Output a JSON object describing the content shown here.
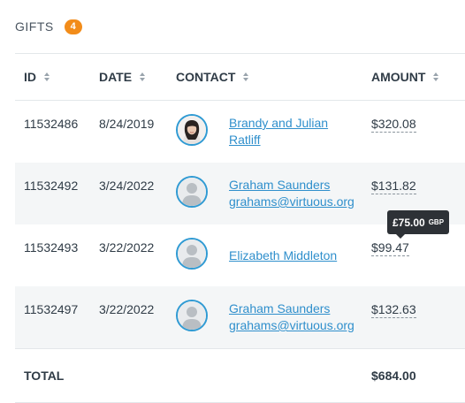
{
  "header": {
    "title": "GIFTS",
    "count": "4"
  },
  "columns": {
    "id": "ID",
    "date": "DATE",
    "contact": "CONTACT",
    "amount": "AMOUNT"
  },
  "rows": [
    {
      "id": "11532486",
      "date": "8/24/2019",
      "contact_line1": "Brandy and Julian",
      "contact_line2": "Ratliff",
      "avatar": "photo",
      "amount": "$320.08"
    },
    {
      "id": "11532492",
      "date": "3/24/2022",
      "contact_line1": "Graham Saunders",
      "contact_line2": "grahams@virtuous.org",
      "avatar": "placeholder",
      "amount": "$131.82"
    },
    {
      "id": "11532493",
      "date": "3/22/2022",
      "contact_line1": "Elizabeth Middleton",
      "contact_line2": "",
      "avatar": "placeholder",
      "amount": "$99.47"
    },
    {
      "id": "11532497",
      "date": "3/22/2022",
      "contact_line1": "Graham Saunders",
      "contact_line2": "grahams@virtuous.org",
      "avatar": "placeholder",
      "amount": "$132.63"
    }
  ],
  "total": {
    "label": "TOTAL",
    "amount": "$684.00"
  },
  "tooltip": {
    "value": "£75.00",
    "currency": "GBP"
  },
  "colors": {
    "accent": "#2f9ad3",
    "badge": "#f28c1a",
    "link": "#2f8fcc"
  }
}
